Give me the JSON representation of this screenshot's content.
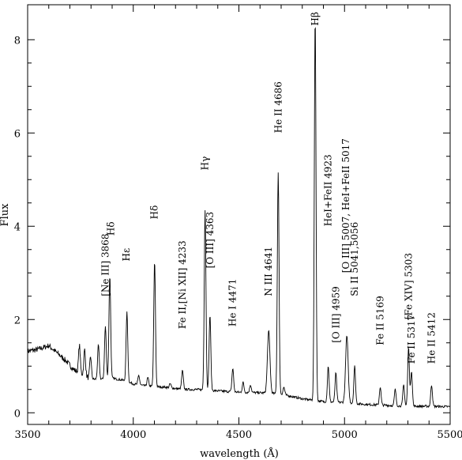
{
  "chart_data": {
    "type": "line",
    "title": "",
    "xlabel": "wavelength (Å)",
    "ylabel": "Flux",
    "xlim": [
      3500,
      5500
    ],
    "ylim": [
      -0.25,
      8.75
    ],
    "grid": false,
    "legend": "none",
    "x_ticks": [
      3500,
      4000,
      4500,
      5000,
      5500
    ],
    "y_ticks": [
      0,
      2,
      4,
      6,
      8
    ],
    "continuum": [
      [
        3500,
        1.32
      ],
      [
        3550,
        1.36
      ],
      [
        3600,
        1.44
      ],
      [
        3640,
        1.28
      ],
      [
        3680,
        1.12
      ],
      [
        3720,
        0.92
      ],
      [
        3760,
        0.82
      ],
      [
        3800,
        0.72
      ],
      [
        3850,
        0.72
      ],
      [
        3900,
        0.74
      ],
      [
        3950,
        0.7
      ],
      [
        4000,
        0.62
      ],
      [
        4050,
        0.58
      ],
      [
        4100,
        0.56
      ],
      [
        4150,
        0.55
      ],
      [
        4200,
        0.52
      ],
      [
        4250,
        0.5
      ],
      [
        4300,
        0.5
      ],
      [
        4400,
        0.47
      ],
      [
        4500,
        0.44
      ],
      [
        4600,
        0.43
      ],
      [
        4700,
        0.4
      ],
      [
        4800,
        0.3
      ],
      [
        4900,
        0.24
      ],
      [
        5000,
        0.22
      ],
      [
        5100,
        0.18
      ],
      [
        5200,
        0.16
      ],
      [
        5300,
        0.14
      ],
      [
        5400,
        0.14
      ],
      [
        5500,
        0.13
      ]
    ],
    "emission_lines": [
      {
        "x": 3745,
        "peak": 1.45,
        "w": 4
      },
      {
        "x": 3770,
        "peak": 1.35,
        "w": 4
      },
      {
        "x": 3798,
        "peak": 1.2,
        "w": 4
      },
      {
        "x": 3835,
        "peak": 1.45,
        "w": 4
      },
      {
        "x": 3868,
        "peak": 1.85,
        "w": 4
      },
      {
        "x": 3889,
        "peak": 2.95,
        "w": 4
      },
      {
        "x": 3970,
        "peak": 2.15,
        "w": 4
      },
      {
        "x": 4026,
        "peak": 0.8,
        "w": 4
      },
      {
        "x": 4069,
        "peak": 0.75,
        "w": 4
      },
      {
        "x": 4101,
        "peak": 3.25,
        "w": 4
      },
      {
        "x": 4175,
        "peak": 0.62,
        "w": 4
      },
      {
        "x": 4233,
        "peak": 0.9,
        "w": 4
      },
      {
        "x": 4340,
        "peak": 4.35,
        "w": 4
      },
      {
        "x": 4363,
        "peak": 2.1,
        "w": 4
      },
      {
        "x": 4471,
        "peak": 0.95,
        "w": 4
      },
      {
        "x": 4520,
        "peak": 0.65,
        "w": 4
      },
      {
        "x": 4555,
        "peak": 0.6,
        "w": 4
      },
      {
        "x": 4641,
        "peak": 1.75,
        "w": 6
      },
      {
        "x": 4686,
        "peak": 5.15,
        "w": 4
      },
      {
        "x": 4713,
        "peak": 0.55,
        "w": 4
      },
      {
        "x": 4861,
        "peak": 8.5,
        "w": 4
      },
      {
        "x": 4923,
        "peak": 1.0,
        "w": 4
      },
      {
        "x": 4959,
        "peak": 0.85,
        "w": 4
      },
      {
        "x": 5011,
        "peak": 1.65,
        "w": 6
      },
      {
        "x": 5048,
        "peak": 1.0,
        "w": 4
      },
      {
        "x": 5169,
        "peak": 0.55,
        "w": 4
      },
      {
        "x": 5240,
        "peak": 0.5,
        "w": 4
      },
      {
        "x": 5280,
        "peak": 0.6,
        "w": 4
      },
      {
        "x": 5303,
        "peak": 1.4,
        "w": 4
      },
      {
        "x": 5317,
        "peak": 0.9,
        "w": 4
      },
      {
        "x": 5412,
        "peak": 0.6,
        "w": 4
      }
    ],
    "annotations": [
      {
        "text": "[Ne III] 3868",
        "x": 3868,
        "y": 2.5,
        "vertical": true
      },
      {
        "text": "Hδ",
        "x": 3895,
        "y": 3.8,
        "vertical": true
      },
      {
        "text": "Hε",
        "x": 3968,
        "y": 3.25,
        "vertical": true
      },
      {
        "text": "Hδ",
        "x": 4100,
        "y": 4.15,
        "vertical": true
      },
      {
        "text": "Fe II,[Ni XII] 4233",
        "x": 4233,
        "y": 1.8,
        "vertical": true
      },
      {
        "text": "[O III] 4363",
        "x": 4363,
        "y": 3.1,
        "vertical": true
      },
      {
        "text": "Hγ",
        "x": 4340,
        "y": 5.2,
        "vertical": true
      },
      {
        "text": "He I 4471",
        "x": 4471,
        "y": 1.85,
        "vertical": true
      },
      {
        "text": "N III 4641",
        "x": 4641,
        "y": 2.5,
        "vertical": true
      },
      {
        "text": "He II 4686",
        "x": 4686,
        "y": 6.0,
        "vertical": true
      },
      {
        "text": "Hβ",
        "x": 4861,
        "y": 8.3,
        "vertical": true
      },
      {
        "text": "HeI+FeII 4923",
        "x": 4923,
        "y": 4.0,
        "vertical": true
      },
      {
        "text": "[O III] 4959",
        "x": 4959,
        "y": 1.5,
        "vertical": true
      },
      {
        "text": "[O III] 5007, HeI+FeII 5017",
        "x": 5007,
        "y": 3.0,
        "vertical": true
      },
      {
        "text": "Si II 5041,5056",
        "x": 5048,
        "y": 2.5,
        "vertical": true
      },
      {
        "text": "Fe II 5169",
        "x": 5169,
        "y": 1.45,
        "vertical": true
      },
      {
        "text": "[Fe XIV] 5303",
        "x": 5303,
        "y": 2.0,
        "vertical": true
      },
      {
        "text": "Fe II 5317",
        "x": 5317,
        "y": 1.05,
        "vertical": true
      },
      {
        "text": "He II 5412",
        "x": 5412,
        "y": 1.05,
        "vertical": true
      }
    ]
  }
}
